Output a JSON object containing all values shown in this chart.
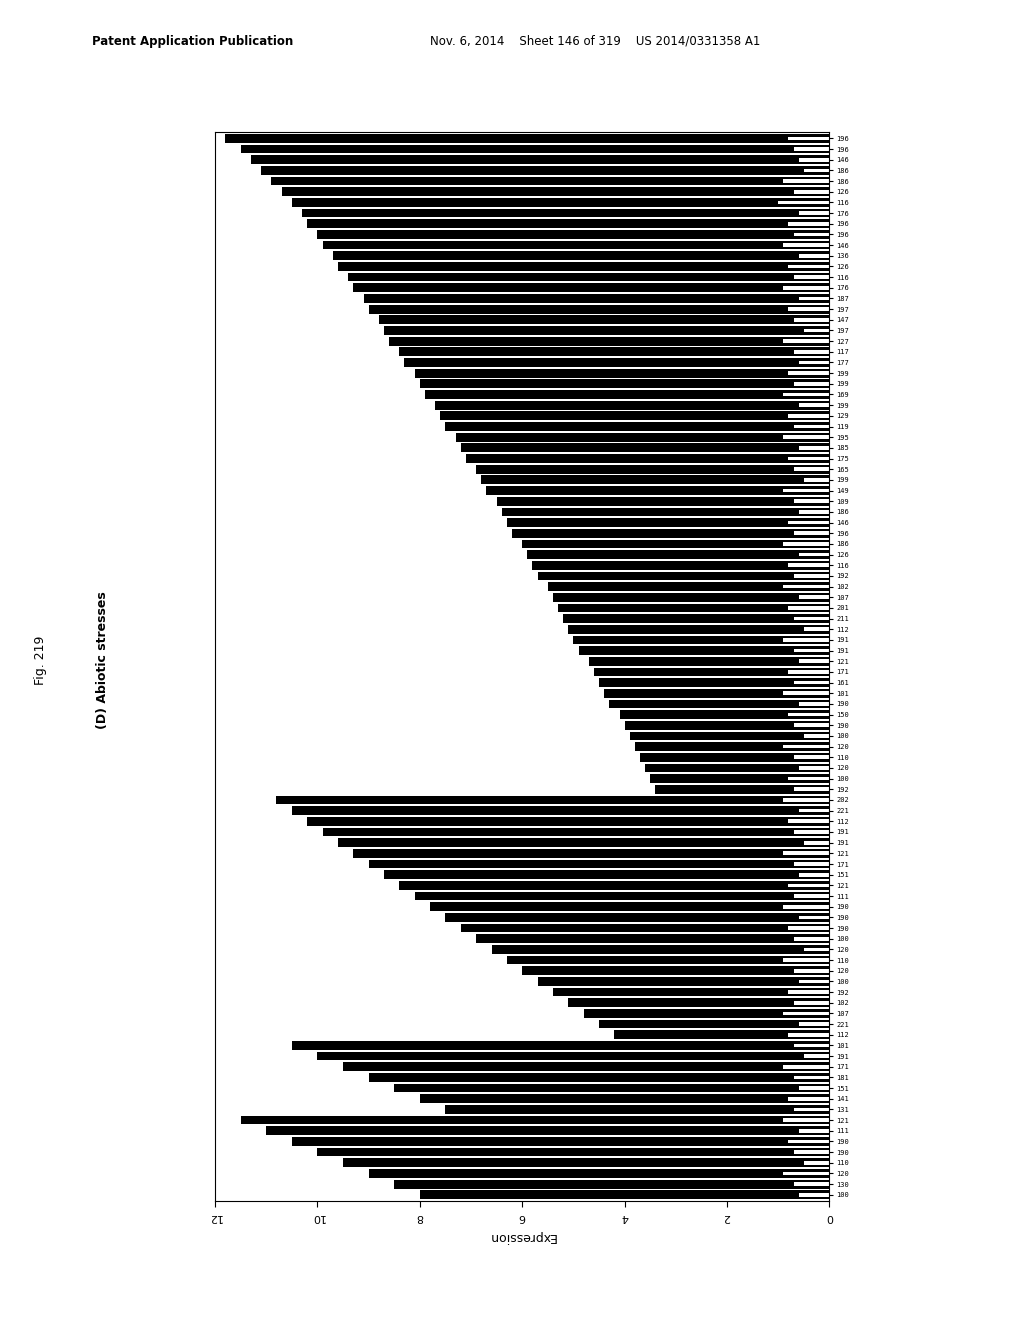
{
  "xlabel": "Expression",
  "xlim_max": 12,
  "xticks": [
    0,
    2,
    4,
    6,
    8,
    10,
    12
  ],
  "bar_color_main": "#000000",
  "bar_color_secondary": "#ffffff",
  "background": "#ffffff",
  "fig_label_text": "Fig. 219",
  "panel_label_text": "(D) Abiotic stresses",
  "header_left": "Patent Application Publication",
  "header_right": "Nov. 6, 2014    Sheet 146 of 319    US 2014/0331358 A1",
  "n_bars": 100,
  "label_fontsize": 5.0,
  "axis_fontsize": 8,
  "figsize": [
    10.24,
    13.2
  ],
  "dpi": 100,
  "labels": [
    "196",
    "196",
    "146",
    "186",
    "186",
    "126",
    "116",
    "176",
    "196",
    "196",
    "146",
    "136",
    "126",
    "116",
    "176",
    "187",
    "197",
    "147",
    "197",
    "127",
    "117",
    "177",
    "199",
    "199",
    "169",
    "199",
    "129",
    "119",
    "195",
    "185",
    "175",
    "165",
    "199",
    "149",
    "109",
    "186",
    "146",
    "196",
    "186",
    "126",
    "116",
    "192",
    "102",
    "107",
    "201",
    "211",
    "112",
    "191",
    "191",
    "121",
    "171",
    "161",
    "101",
    "190",
    "150",
    "190",
    "100",
    "120",
    "110",
    "120",
    "100",
    "192",
    "202",
    "221",
    "112",
    "191",
    "191",
    "121",
    "171",
    "151",
    "121",
    "111",
    "190",
    "190",
    "190",
    "100",
    "120",
    "110",
    "120",
    "100",
    "192",
    "102",
    "107",
    "221",
    "112",
    "101",
    "191",
    "171",
    "181",
    "151",
    "141",
    "131",
    "121",
    "111",
    "190",
    "190",
    "110",
    "120",
    "130",
    "100"
  ],
  "main_vals": [
    11.8,
    11.5,
    11.3,
    11.1,
    10.9,
    10.7,
    10.5,
    10.3,
    10.2,
    10.0,
    9.9,
    9.7,
    9.6,
    9.4,
    9.3,
    9.1,
    9.0,
    8.8,
    8.7,
    8.6,
    8.4,
    8.3,
    8.1,
    8.0,
    7.9,
    7.7,
    7.6,
    7.5,
    7.3,
    7.2,
    7.1,
    6.9,
    6.8,
    6.7,
    6.5,
    6.4,
    6.3,
    6.2,
    6.0,
    5.9,
    5.8,
    5.7,
    5.5,
    5.4,
    5.3,
    5.2,
    5.1,
    5.0,
    4.9,
    4.7,
    4.6,
    4.5,
    4.4,
    4.3,
    4.1,
    4.0,
    3.9,
    3.8,
    3.7,
    3.6,
    3.5,
    3.4,
    10.8,
    10.5,
    10.2,
    9.9,
    9.6,
    9.3,
    9.0,
    8.7,
    8.4,
    8.1,
    7.8,
    7.5,
    7.2,
    6.9,
    6.6,
    6.3,
    6.0,
    5.7,
    5.4,
    5.1,
    4.8,
    4.5,
    4.2,
    10.5,
    10.0,
    9.5,
    9.0,
    8.5,
    8.0,
    7.5,
    11.5,
    11.0,
    10.5,
    10.0,
    9.5,
    9.0,
    8.5,
    8.0
  ],
  "sec_vals": [
    0.8,
    0.7,
    0.6,
    0.5,
    0.9,
    0.7,
    1.0,
    0.6,
    0.8,
    0.7,
    0.9,
    0.6,
    0.8,
    0.7,
    0.9,
    0.6,
    0.8,
    0.7,
    0.5,
    0.9,
    0.7,
    0.6,
    0.8,
    0.7,
    0.9,
    0.6,
    0.8,
    0.7,
    0.9,
    0.6,
    0.8,
    0.7,
    0.5,
    0.9,
    0.7,
    0.6,
    0.8,
    0.7,
    0.9,
    0.6,
    0.8,
    0.7,
    0.9,
    0.6,
    0.8,
    0.7,
    0.5,
    0.9,
    0.7,
    0.6,
    0.8,
    0.7,
    0.9,
    0.6,
    0.8,
    0.7,
    0.5,
    0.9,
    0.7,
    0.6,
    0.8,
    0.7,
    0.9,
    0.6,
    0.8,
    0.7,
    0.5,
    0.9,
    0.7,
    0.6,
    0.8,
    0.7,
    0.9,
    0.6,
    0.8,
    0.7,
    0.5,
    0.9,
    0.7,
    0.6,
    0.8,
    0.7,
    0.9,
    0.6,
    0.8,
    0.7,
    0.5,
    0.9,
    0.7,
    0.6,
    0.8,
    0.7,
    0.9,
    0.6,
    0.8,
    0.7,
    0.5,
    0.9,
    0.7,
    0.6
  ]
}
